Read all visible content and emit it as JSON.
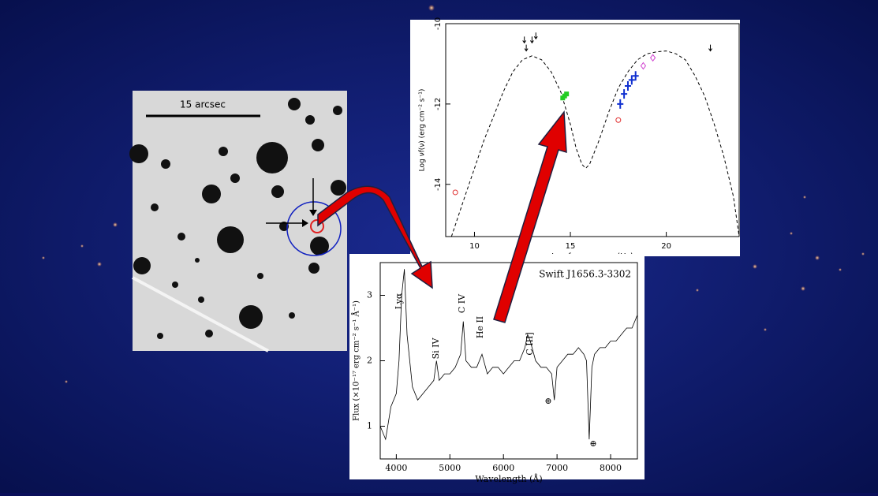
{
  "image_panel": {
    "scale_label": "15 arcsec"
  },
  "chart_data": [
    {
      "type": "line",
      "xlabel": "Log frequency ν (Hz)",
      "ylabel": "Log νf(ν) (erg cm⁻² s⁻¹)",
      "xlim": [
        8.5,
        23.8
      ],
      "xticks": [
        10,
        15,
        20
      ],
      "ylim": [
        -15.3,
        -10
      ],
      "yticks": [
        -14,
        -12,
        -10
      ],
      "series": [
        {
          "x": [
            8.8,
            9.5,
            10,
            10.5,
            11,
            11.5,
            12,
            12.5,
            13,
            13.5,
            14,
            14.5,
            15,
            15.3,
            15.6,
            15.8,
            16,
            16.5,
            17,
            17.5,
            18,
            18.5,
            19,
            19.5,
            20,
            20.5,
            21,
            21.5,
            22,
            22.5,
            23,
            23.5,
            23.8
          ],
          "values": [
            -15.3,
            -14.3,
            -13.6,
            -12.9,
            -12.3,
            -11.7,
            -11.2,
            -10.9,
            -10.8,
            -10.9,
            -11.2,
            -11.7,
            -12.5,
            -13.1,
            -13.5,
            -13.6,
            -13.5,
            -12.9,
            -12.2,
            -11.6,
            -11.2,
            -10.9,
            -10.75,
            -10.7,
            -10.68,
            -10.75,
            -10.9,
            -11.3,
            -11.8,
            -12.5,
            -13.3,
            -14.3,
            -15.3
          ],
          "color": "#000000",
          "marker": "dashed-line"
        },
        {
          "x": [
            9,
            17.5
          ],
          "values": [
            -14.2,
            -12.4
          ],
          "color": "#e03030",
          "marker": "circle"
        },
        {
          "x": [
            14.6,
            14.7,
            14.8
          ],
          "values": [
            -11.85,
            -11.8,
            -11.75
          ],
          "color": "#22cc22",
          "marker": "square"
        },
        {
          "x": [
            17.6,
            17.8,
            18,
            18.2,
            18.4
          ],
          "values": [
            -12.0,
            -11.75,
            -11.55,
            -11.4,
            -11.3
          ],
          "color": "#1030d0",
          "marker": "cross"
        },
        {
          "x": [
            18.8,
            19.3
          ],
          "values": [
            -11.05,
            -10.85
          ],
          "color": "#d040d0",
          "marker": "diamond"
        },
        {
          "x": [
            12.6,
            12.7,
            13.0,
            13.2,
            22.3
          ],
          "values": [
            -10.4,
            -10.6,
            -10.4,
            -10.3,
            -10.6
          ],
          "color": "#000000",
          "marker": "arrow"
        }
      ]
    },
    {
      "type": "line",
      "title": "Swift J1656.3-3302",
      "xlabel": "Wavelength (Å)",
      "ylabel": "Flux (×10⁻¹⁷ erg cm⁻² s⁻¹ Å⁻¹)",
      "xlim": [
        3700,
        8500
      ],
      "xticks": [
        4000,
        5000,
        6000,
        7000,
        8000
      ],
      "ylim": [
        0.5,
        3.5
      ],
      "yticks": [
        1,
        2,
        3
      ],
      "annotations": [
        "Lyα",
        "Si IV",
        "C IV",
        "He II",
        "C III]",
        "⊕",
        "⊕"
      ],
      "series": [
        {
          "x": [
            3700,
            3800,
            3900,
            4000,
            4050,
            4100,
            4150,
            4200,
            4300,
            4400,
            4500,
            4600,
            4700,
            4750,
            4800,
            4900,
            5000,
            5100,
            5200,
            5250,
            5300,
            5400,
            5500,
            5600,
            5700,
            5800,
            5900,
            6000,
            6100,
            6200,
            6300,
            6400,
            6450,
            6500,
            6600,
            6700,
            6800,
            6900,
            6950,
            7000,
            7100,
            7200,
            7300,
            7400,
            7500,
            7550,
            7600,
            7650,
            7700,
            7800,
            7900,
            8000,
            8100,
            8200,
            8300,
            8400,
            8500
          ],
          "values": [
            1.0,
            0.8,
            1.3,
            1.5,
            2.0,
            3.0,
            3.4,
            2.4,
            1.6,
            1.4,
            1.5,
            1.6,
            1.7,
            2.0,
            1.7,
            1.8,
            1.8,
            1.9,
            2.1,
            2.6,
            2.0,
            1.9,
            1.9,
            2.1,
            1.8,
            1.9,
            1.9,
            1.8,
            1.9,
            2.0,
            2.0,
            2.2,
            2.4,
            2.3,
            2.0,
            1.9,
            1.9,
            1.8,
            1.4,
            1.9,
            2.0,
            2.1,
            2.1,
            2.2,
            2.1,
            2.0,
            0.8,
            1.9,
            2.1,
            2.2,
            2.2,
            2.3,
            2.3,
            2.4,
            2.5,
            2.5,
            2.7
          ],
          "color": "#000000",
          "marker": "solid-line"
        }
      ]
    }
  ]
}
